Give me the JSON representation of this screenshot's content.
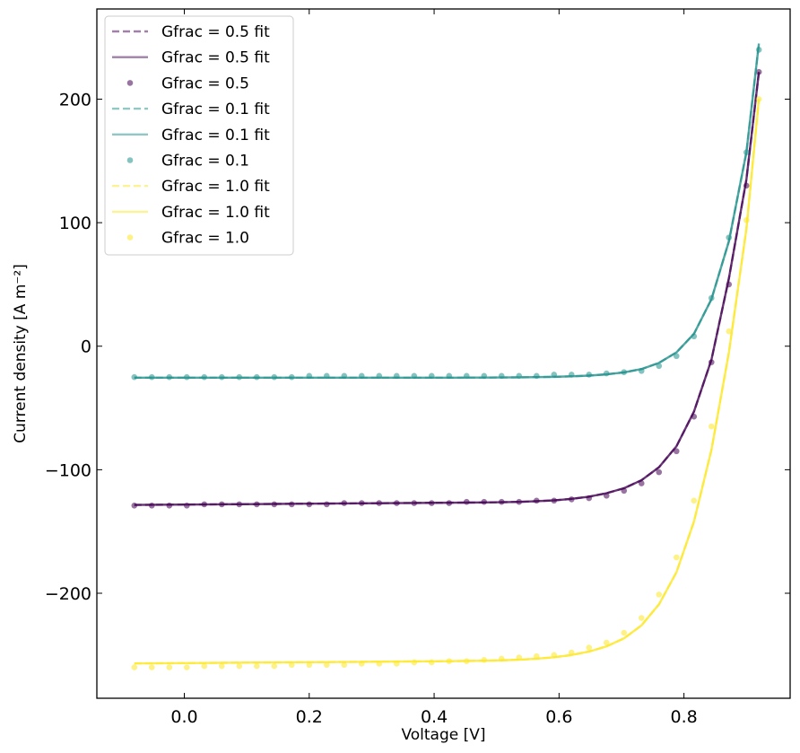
{
  "chart_data": {
    "type": "line",
    "xlabel": "Voltage [V]",
    "ylabel": "Current density [A m⁻²]",
    "xlim": [
      -0.14,
      0.97
    ],
    "ylim": [
      -285,
      273
    ],
    "x_ticks": [
      {
        "value": 0.0,
        "label": "0.0"
      },
      {
        "value": 0.2,
        "label": "0.2"
      },
      {
        "value": 0.4,
        "label": "0.4"
      },
      {
        "value": 0.6,
        "label": "0.6"
      },
      {
        "value": 0.8,
        "label": "0.8"
      }
    ],
    "y_ticks": [
      {
        "value": -200,
        "label": "−200"
      },
      {
        "value": -100,
        "label": "−100"
      },
      {
        "value": 0,
        "label": "0"
      },
      {
        "value": 100,
        "label": "100"
      },
      {
        "value": 200,
        "label": "200"
      }
    ],
    "legend_position": "top-left",
    "legend": [
      {
        "label": "Gfrac = 0.5 fit",
        "style": "dashed",
        "color": "#440154"
      },
      {
        "label": "Gfrac = 0.5 fit",
        "style": "solid",
        "color": "#440154"
      },
      {
        "label": "Gfrac = 0.5",
        "style": "marker",
        "color": "#440154"
      },
      {
        "label": "Gfrac = 0.1 fit",
        "style": "dashed",
        "color": "#21918c"
      },
      {
        "label": "Gfrac = 0.1 fit",
        "style": "solid",
        "color": "#21918c"
      },
      {
        "label": "Gfrac = 0.1",
        "style": "marker",
        "color": "#21918c"
      },
      {
        "label": "Gfrac = 1.0 fit",
        "style": "dashed",
        "color": "#fde725"
      },
      {
        "label": "Gfrac = 1.0 fit",
        "style": "solid",
        "color": "#fde725"
      },
      {
        "label": "Gfrac = 1.0",
        "style": "marker",
        "color": "#fde725"
      }
    ],
    "series": [
      {
        "name": "Gfrac = 0.5",
        "color": "#440154",
        "x": [
          -0.08,
          -0.052,
          -0.024,
          0.004,
          0.032,
          0.06,
          0.088,
          0.116,
          0.144,
          0.172,
          0.2,
          0.228,
          0.256,
          0.284,
          0.312,
          0.34,
          0.368,
          0.396,
          0.424,
          0.452,
          0.48,
          0.508,
          0.536,
          0.564,
          0.592,
          0.62,
          0.648,
          0.676,
          0.704,
          0.732,
          0.76,
          0.788,
          0.816,
          0.844,
          0.872,
          0.9,
          0.92
        ],
        "points": [
          -129,
          -129,
          -129,
          -129,
          -128,
          -128,
          -128,
          -128,
          -128,
          -128,
          -128,
          -128,
          -127,
          -127,
          -127,
          -127,
          -127,
          -127,
          -127,
          -126,
          -126,
          -126,
          -126,
          -125,
          -125,
          -124,
          -123,
          -121,
          -117,
          -111,
          -102,
          -85,
          -57,
          -13,
          50,
          130,
          222
        ],
        "fit": [
          -128.5,
          -128.4,
          -128.3,
          -128.2,
          -128.1,
          -128,
          -127.9,
          -127.8,
          -127.7,
          -127.6,
          -127.5,
          -127.4,
          -127.3,
          -127.2,
          -127.1,
          -127,
          -126.9,
          -126.8,
          -126.7,
          -126.6,
          -126.5,
          -126.3,
          -126,
          -125.5,
          -124.8,
          -123.6,
          -121.8,
          -119,
          -115,
          -108.5,
          -98,
          -81,
          -53,
          -11,
          55,
          135,
          222
        ]
      },
      {
        "name": "Gfrac = 0.1",
        "color": "#21918c",
        "x": [
          -0.08,
          -0.052,
          -0.024,
          0.004,
          0.032,
          0.06,
          0.088,
          0.116,
          0.144,
          0.172,
          0.2,
          0.228,
          0.256,
          0.284,
          0.312,
          0.34,
          0.368,
          0.396,
          0.424,
          0.452,
          0.48,
          0.508,
          0.536,
          0.564,
          0.592,
          0.62,
          0.648,
          0.676,
          0.704,
          0.732,
          0.76,
          0.788,
          0.816,
          0.844,
          0.872,
          0.9,
          0.92
        ],
        "points": [
          -25,
          -25,
          -25,
          -25,
          -25,
          -25,
          -25,
          -25,
          -25,
          -25,
          -24,
          -24,
          -24,
          -24,
          -24,
          -24,
          -24,
          -24,
          -24,
          -24,
          -24,
          -24,
          -24,
          -24,
          -23,
          -23,
          -23,
          -22,
          -21,
          -20,
          -16,
          -8,
          8,
          39,
          88,
          157,
          240
        ],
        "fit": [
          -25.5,
          -25.5,
          -25.5,
          -25.5,
          -25.5,
          -25.5,
          -25.5,
          -25.5,
          -25.5,
          -25.5,
          -25.5,
          -25.5,
          -25.5,
          -25.5,
          -25.5,
          -25.5,
          -25.5,
          -25.5,
          -25.5,
          -25.4,
          -25.4,
          -25.3,
          -25.2,
          -25,
          -24.8,
          -24.4,
          -23.8,
          -22.8,
          -21.2,
          -18.5,
          -13.5,
          -5,
          10,
          38,
          85,
          157,
          245
        ]
      },
      {
        "name": "Gfrac = 1.0",
        "color": "#fde725",
        "x": [
          -0.08,
          -0.052,
          -0.024,
          0.004,
          0.032,
          0.06,
          0.088,
          0.116,
          0.144,
          0.172,
          0.2,
          0.228,
          0.256,
          0.284,
          0.312,
          0.34,
          0.368,
          0.396,
          0.424,
          0.452,
          0.48,
          0.508,
          0.536,
          0.564,
          0.592,
          0.62,
          0.648,
          0.676,
          0.704,
          0.732,
          0.76,
          0.788,
          0.816,
          0.844,
          0.872,
          0.9,
          0.92
        ],
        "points": [
          -260,
          -260,
          -260,
          -260,
          -259,
          -259,
          -259,
          -259,
          -259,
          -258,
          -258,
          -258,
          -258,
          -257,
          -257,
          -257,
          -256,
          -256,
          -255,
          -255,
          -254,
          -253,
          -252,
          -251,
          -250,
          -248,
          -244,
          -240,
          -232,
          -220,
          -201,
          -171,
          -125,
          -65,
          12,
          102,
          200
        ],
        "fit": [
          -256.8,
          -256.7,
          -256.6,
          -256.5,
          -256.4,
          -256.3,
          -256.2,
          -256.1,
          -256,
          -255.9,
          -255.8,
          -255.7,
          -255.6,
          -255.5,
          -255.4,
          -255.3,
          -255.2,
          -255.1,
          -255,
          -254.8,
          -254.6,
          -254.3,
          -253.8,
          -253,
          -251.8,
          -250,
          -247.2,
          -243,
          -236.5,
          -226,
          -209,
          -183,
          -142,
          -84,
          -5,
          95,
          200
        ]
      }
    ]
  }
}
